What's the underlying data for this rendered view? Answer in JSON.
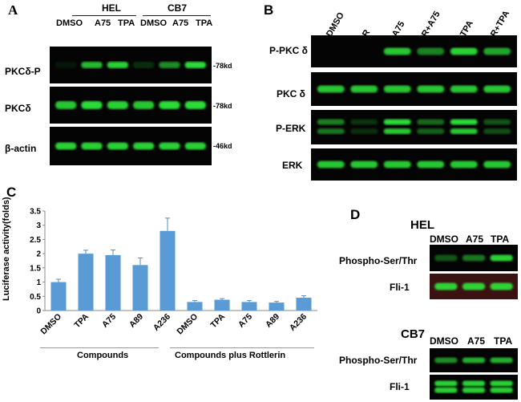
{
  "panel_a": {
    "letter": "A",
    "groups": [
      "HEL",
      "CB7"
    ],
    "lanes": [
      "DMSO",
      "A75",
      "TPA",
      "DMSO",
      "A75",
      "TPA"
    ],
    "rows": [
      {
        "label": "PKCδ-P",
        "marker": "-78kd",
        "intensity": [
          0.08,
          0.8,
          0.9,
          0.18,
          0.6,
          0.95
        ]
      },
      {
        "label": "PKCδ",
        "marker": "-78kd",
        "intensity": [
          0.85,
          0.95,
          0.9,
          0.85,
          0.95,
          0.95
        ]
      },
      {
        "label": "β-actin",
        "marker": "-46kd",
        "intensity": [
          0.9,
          0.9,
          0.9,
          0.9,
          0.9,
          0.9
        ]
      }
    ]
  },
  "panel_b": {
    "letter": "B",
    "lanes": [
      "DMSO",
      "R",
      "A75",
      "R+A75",
      "TPA",
      "R+TPA"
    ],
    "rows": [
      {
        "label": "P-PKC δ",
        "intensity": [
          0.0,
          0.0,
          0.85,
          0.55,
          0.9,
          0.7
        ]
      },
      {
        "label": "PKC δ",
        "intensity": [
          0.85,
          0.85,
          0.85,
          0.85,
          0.85,
          0.85
        ]
      },
      {
        "label": "P-ERK",
        "intensity": [
          0.55,
          0.2,
          0.95,
          0.45,
          0.95,
          0.35
        ]
      },
      {
        "label": "ERK",
        "intensity": [
          0.85,
          0.85,
          0.85,
          0.85,
          0.85,
          0.85
        ]
      }
    ]
  },
  "panel_c": {
    "letter": "C",
    "group_labels": [
      "Compounds",
      "Compounds plus Rottlerin"
    ]
  },
  "chart_data": {
    "type": "bar",
    "title": "",
    "xlabel": "",
    "ylabel": "Luciferase activity(folds)",
    "categories": [
      "DMSO",
      "TPA",
      "A75",
      "A89",
      "A236",
      "DMSO",
      "TPA",
      "A75",
      "A89",
      "A236"
    ],
    "values": [
      1.0,
      2.0,
      1.95,
      1.6,
      2.8,
      0.3,
      0.38,
      0.3,
      0.28,
      0.45
    ],
    "errors": [
      0.1,
      0.12,
      0.18,
      0.25,
      0.45,
      0.05,
      0.04,
      0.05,
      0.04,
      0.07
    ],
    "ylim": [
      0,
      3.5
    ],
    "yticks": [
      "0",
      "0.5",
      "1",
      "1.5",
      "2",
      "2.5",
      "3",
      "3.5"
    ],
    "bar_color": "#5b9bd5",
    "grid": false
  },
  "panel_d": {
    "letter": "D",
    "blocks": [
      {
        "title": "HEL",
        "lanes": [
          "DMSO",
          "A75",
          "TPA"
        ],
        "rows": [
          {
            "label": "Phospho-Ser/Thr",
            "intensity": [
              0.35,
              0.5,
              0.9
            ]
          },
          {
            "label": "Fli-1",
            "intensity": [
              0.9,
              0.9,
              0.9
            ]
          }
        ]
      },
      {
        "title": "CB7",
        "lanes": [
          "DMSO",
          "A75",
          "TPA"
        ],
        "rows": [
          {
            "label": "Phospho-Ser/Thr",
            "intensity": [
              0.6,
              0.75,
              0.75
            ]
          },
          {
            "label": "Fli-1",
            "intensity": [
              0.9,
              0.9,
              0.9
            ]
          }
        ]
      }
    ]
  },
  "colors": {
    "band": "#2fe83a",
    "blot_bg": "#050505",
    "accent_line": "#e8813a"
  }
}
